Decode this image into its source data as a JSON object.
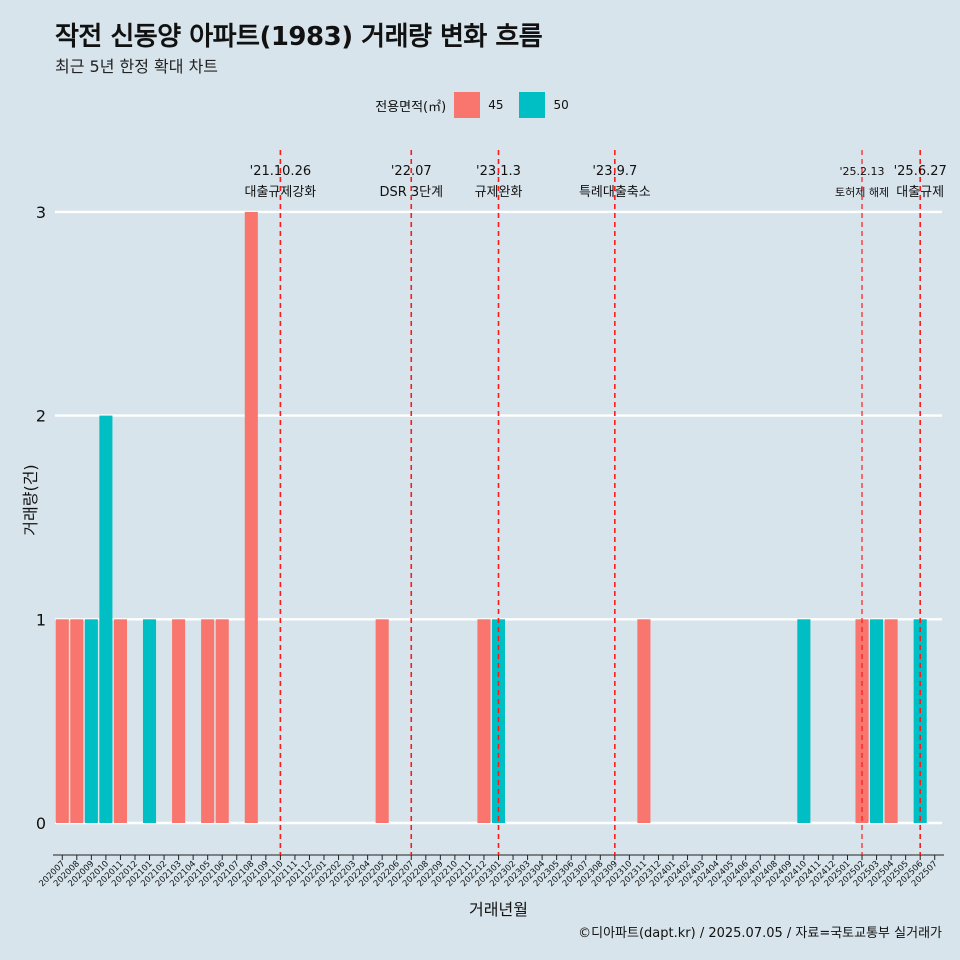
{
  "title": "작전 신동양 아파트(1983) 거래량 변화 흐름",
  "subtitle": "최근 5년 한정 확대 차트",
  "legend": {
    "title": "전용면적(㎡)",
    "items": [
      {
        "label": "45",
        "color": "#f8766d"
      },
      {
        "label": "50",
        "color": "#00bfc4"
      }
    ]
  },
  "caption": "©디아파트(dapt.kr) / 2025.07.05 / 자료=국토교통부 실거래가",
  "chart_data": {
    "type": "bar",
    "xlabel": "거래년월",
    "ylabel": "거래량(건)",
    "ylim": [
      0,
      3
    ],
    "yticks": [
      0,
      1,
      2,
      3
    ],
    "grid": true,
    "legend_position": "top",
    "categories": [
      "202007",
      "202008",
      "202009",
      "202010",
      "202011",
      "202012",
      "202101",
      "202102",
      "202103",
      "202104",
      "202105",
      "202106",
      "202107",
      "202108",
      "202109",
      "202110",
      "202111",
      "202112",
      "202201",
      "202202",
      "202203",
      "202204",
      "202205",
      "202206",
      "202207",
      "202208",
      "202209",
      "202210",
      "202211",
      "202212",
      "202301",
      "202302",
      "202303",
      "202304",
      "202305",
      "202306",
      "202307",
      "202308",
      "202309",
      "202310",
      "202311",
      "202312",
      "202401",
      "202402",
      "202403",
      "202404",
      "202405",
      "202406",
      "202407",
      "202408",
      "202409",
      "202410",
      "202411",
      "202412",
      "202501",
      "202502",
      "202503",
      "202504",
      "202505",
      "202506",
      "202507"
    ],
    "bars": [
      {
        "month": "202007",
        "area": "45",
        "value": 1
      },
      {
        "month": "202008",
        "area": "45",
        "value": 1
      },
      {
        "month": "202009",
        "area": "50",
        "value": 1
      },
      {
        "month": "202010",
        "area": "50",
        "value": 2
      },
      {
        "month": "202011",
        "area": "45",
        "value": 1
      },
      {
        "month": "202012",
        "area": "45",
        "value": 0
      },
      {
        "month": "202101",
        "area": "50",
        "value": 1
      },
      {
        "month": "202102",
        "area": "50",
        "value": 0
      },
      {
        "month": "202103",
        "area": "45",
        "value": 1
      },
      {
        "month": "202104",
        "area": "45",
        "value": 0
      },
      {
        "month": "202105",
        "area": "45",
        "value": 1
      },
      {
        "month": "202106",
        "area": "45",
        "value": 1
      },
      {
        "month": "202107",
        "area": "45",
        "value": 0
      },
      {
        "month": "202108",
        "area": "45",
        "value": 3
      },
      {
        "month": "202205",
        "area": "45",
        "value": 1
      },
      {
        "month": "202212",
        "area": "45",
        "value": 1
      },
      {
        "month": "202301",
        "area": "50",
        "value": 1
      },
      {
        "month": "202311",
        "area": "45",
        "value": 1
      },
      {
        "month": "202410",
        "area": "50",
        "value": 1
      },
      {
        "month": "202502",
        "area": "45",
        "value": 1
      },
      {
        "month": "202503",
        "area": "50",
        "value": 1
      },
      {
        "month": "202504",
        "area": "45",
        "value": 1
      },
      {
        "month": "202506",
        "area": "50",
        "value": 1
      }
    ],
    "events": [
      {
        "month": "202110",
        "date": "'21.10.26",
        "label": "대출규제강화",
        "small": false
      },
      {
        "month": "202207",
        "date": "'22.07",
        "label": "DSR 3단계",
        "small": false
      },
      {
        "month": "202301",
        "date": "'23.1.3",
        "label": "규제완화",
        "small": false
      },
      {
        "month": "202309",
        "date": "'23.9.7",
        "label": "특례대출축소",
        "small": false
      },
      {
        "month": "202502",
        "date": "'25.2.13",
        "label": "토허제 해제",
        "small": true
      },
      {
        "month": "202506",
        "date": "'25.6.27",
        "label": "대출규제",
        "small": false
      }
    ]
  }
}
